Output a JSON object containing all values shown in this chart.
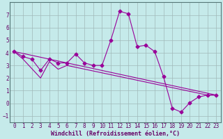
{
  "xlabel": "Windchill (Refroidissement éolien,°C)",
  "bg_color": "#c5eaea",
  "line_color": "#990099",
  "grid_color": "#a0b8b8",
  "xlim": [
    -0.5,
    23.5
  ],
  "ylim": [
    -1.5,
    8.0
  ],
  "yticks": [
    -1,
    0,
    1,
    2,
    3,
    4,
    5,
    6,
    7
  ],
  "xticks": [
    0,
    1,
    2,
    3,
    4,
    5,
    6,
    7,
    8,
    9,
    10,
    11,
    12,
    13,
    14,
    15,
    16,
    17,
    18,
    19,
    20,
    21,
    22,
    23
  ],
  "series1_x": [
    0,
    1,
    2,
    3,
    4,
    5,
    6,
    7,
    8,
    9,
    10,
    11,
    12,
    13,
    14,
    15,
    16,
    17,
    18,
    19,
    20,
    21,
    22,
    23
  ],
  "series1_y": [
    4.1,
    3.7,
    3.5,
    2.6,
    3.5,
    3.2,
    3.2,
    3.9,
    3.2,
    3.0,
    3.0,
    5.0,
    7.3,
    7.1,
    4.5,
    4.6,
    4.1,
    2.1,
    -0.4,
    -0.7,
    0.05,
    0.5,
    0.65,
    0.65
  ],
  "series2_x": [
    0,
    1,
    3,
    4,
    5,
    6,
    22,
    23
  ],
  "series2_y": [
    4.1,
    3.5,
    2.0,
    3.3,
    2.7,
    3.0,
    0.65,
    0.65
  ],
  "series3_x": [
    0,
    23
  ],
  "series3_y": [
    4.1,
    0.65
  ],
  "marker": "D",
  "marker_size": 2.5,
  "lw": 0.8,
  "tick_fontsize": 5.5,
  "xlabel_fontsize": 6.0
}
